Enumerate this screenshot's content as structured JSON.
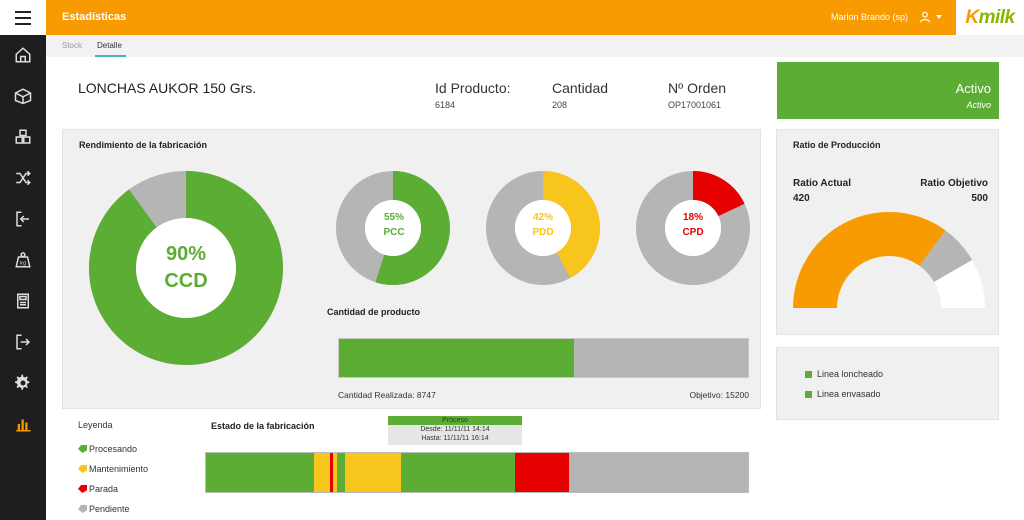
{
  "header": {
    "title": "Estadísticas",
    "user_name": "Marlon Brando (sp)",
    "logo_k": "K",
    "logo_rest": "milk",
    "accent": "#f79b00"
  },
  "sidebar": {
    "items": [
      {
        "icon": "home-icon"
      },
      {
        "icon": "box-icon"
      },
      {
        "icon": "boxes-icon"
      },
      {
        "icon": "shuffle-icon"
      },
      {
        "icon": "login-icon"
      },
      {
        "icon": "kg-weight-icon"
      },
      {
        "icon": "scale-icon"
      },
      {
        "icon": "logout-icon"
      },
      {
        "icon": "gear-icon"
      },
      {
        "icon": "bar-chart-icon"
      }
    ]
  },
  "tabs": [
    {
      "label": "Stock",
      "active": false
    },
    {
      "label": "Detalle",
      "active": true
    }
  ],
  "product": {
    "name": "LONCHAS AUKOR 150 Grs.",
    "id_label": "Id Producto:",
    "id_value": "6184",
    "qty_label": "Cantidad",
    "qty_value": "208",
    "order_label": "Nº Orden",
    "order_value": "OP17001061"
  },
  "status": {
    "main": "Activo",
    "sub": "Activo",
    "color": "#5cad33"
  },
  "rendimiento": {
    "title": "Rendimiento de la fabricación",
    "ccd": {
      "value": "90%",
      "label": "CCD",
      "percent": 90,
      "color": "#5cad33"
    },
    "pcc": {
      "value": "55%",
      "label": "PCC",
      "percent": 55,
      "color": "#5cad33"
    },
    "pdd": {
      "value": "42%",
      "label": "PDD",
      "percent": 42,
      "color": "#f8c51c"
    },
    "cpd": {
      "value": "18%",
      "label": "CPD",
      "percent": 18,
      "color": "#e60000"
    }
  },
  "cantidad_producto": {
    "title": "Cantidad de producto",
    "realizada_text": "Cantidad Realizada: 8747",
    "objetivo_text": "Objetivo: 15200",
    "realizada": 8747,
    "objetivo": 15200
  },
  "ratio": {
    "title": "Ratio de Producción",
    "actual_label": "Ratio Actual",
    "actual_value": "420",
    "objetivo_label": "Ratio Objetivo",
    "objetivo_value": "500",
    "actual": 420,
    "objetivo": 500,
    "max": 600
  },
  "lineas": {
    "items": [
      "Linea loncheado",
      "Linea envasado"
    ]
  },
  "leyenda": {
    "title": "Leyenda",
    "items": [
      {
        "label": "Procesando",
        "color": "#5cad33"
      },
      {
        "label": "Mantenimiento",
        "color": "#f8c51c"
      },
      {
        "label": "Parada",
        "color": "#e60000"
      },
      {
        "label": "Pendiente",
        "color": "#b5b5b5"
      }
    ]
  },
  "estado": {
    "title": "Estado de la fabricación",
    "tooltip": {
      "title": "Proceso",
      "desde": "Desde: 11/11/11 14:14",
      "hasta": "Hasta: 11/11/11 16:14"
    },
    "segments": [
      {
        "state": "Procesando",
        "fraction": 0.2
      },
      {
        "state": "Mantenimiento",
        "fraction": 0.029
      },
      {
        "state": "Parada",
        "fraction": 0.006
      },
      {
        "state": "Mantenimiento",
        "fraction": 0.007
      },
      {
        "state": "Procesando",
        "fraction": 0.015
      },
      {
        "state": "Mantenimiento",
        "fraction": 0.103
      },
      {
        "state": "Procesando",
        "fraction": 0.21
      },
      {
        "state": "Parada",
        "fraction": 0.1
      },
      {
        "state": "Pendiente",
        "fraction": 0.33
      }
    ]
  }
}
